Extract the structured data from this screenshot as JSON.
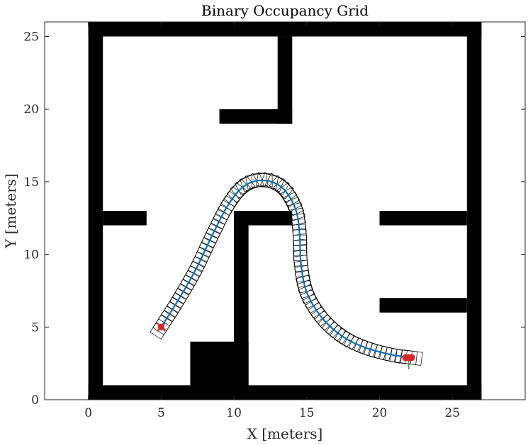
{
  "chart_data": {
    "type": "occupancy-grid-path",
    "title": "Binary Occupancy Grid",
    "xlabel": "X [meters]",
    "ylabel": "Y [meters]",
    "xlim": [
      -3,
      30
    ],
    "ylim": [
      0,
      26
    ],
    "xticks": [
      0,
      5,
      10,
      15,
      20,
      25
    ],
    "yticks": [
      0,
      5,
      10,
      15,
      20,
      25
    ],
    "grid": false,
    "obstacles": [
      {
        "x0": 0,
        "y0": 0,
        "x1": 27,
        "y1": 1
      },
      {
        "x0": 0,
        "y0": 25,
        "x1": 27,
        "y1": 26
      },
      {
        "x0": 0,
        "y0": 0,
        "x1": 1,
        "y1": 26
      },
      {
        "x0": 26,
        "y0": 0,
        "x1": 27,
        "y1": 26
      },
      {
        "x0": 13,
        "y0": 19,
        "x1": 14,
        "y1": 25
      },
      {
        "x0": 9,
        "y0": 19,
        "x1": 14,
        "y1": 20
      },
      {
        "x0": 1,
        "y0": 12,
        "x1": 4,
        "y1": 13
      },
      {
        "x0": 10,
        "y0": 1,
        "x1": 11,
        "y1": 13
      },
      {
        "x0": 10,
        "y0": 12,
        "x1": 14,
        "y1": 13
      },
      {
        "x0": 7,
        "y0": 1,
        "x1": 11,
        "y1": 4
      },
      {
        "x0": 20,
        "y0": 12,
        "x1": 26,
        "y1": 13
      },
      {
        "x0": 20,
        "y0": 6,
        "x1": 26,
        "y1": 7
      }
    ],
    "path": {
      "color": "#0072BD",
      "points": [
        [
          5,
          5
        ],
        [
          6.2,
          6.9
        ],
        [
          7.4,
          9
        ],
        [
          8.5,
          11.3
        ],
        [
          9.6,
          13.4
        ],
        [
          10.7,
          14.7
        ],
        [
          12,
          15.1
        ],
        [
          13.3,
          14.6
        ],
        [
          14.2,
          13.2
        ],
        [
          14.5,
          11.5
        ],
        [
          14.6,
          9.4
        ],
        [
          15,
          7.4
        ],
        [
          16,
          5.7
        ],
        [
          17.4,
          4.4
        ],
        [
          19,
          3.6
        ],
        [
          20.8,
          3.1
        ],
        [
          22.2,
          2.9
        ]
      ]
    },
    "vehicle_footprint": {
      "color": "#000000",
      "length": 1.4,
      "width": 0.9
    },
    "start_marker": {
      "x": 5,
      "y": 5,
      "color": "#d62728"
    },
    "goal_markers": {
      "x": [
        21.8,
        22.0,
        22.2
      ],
      "y": [
        2.9,
        2.9,
        2.9
      ],
      "color": "#d62728"
    },
    "goal_heading": {
      "x": 22,
      "y0": 2.9,
      "y1": 2.1,
      "color": "#2ca02c"
    }
  }
}
